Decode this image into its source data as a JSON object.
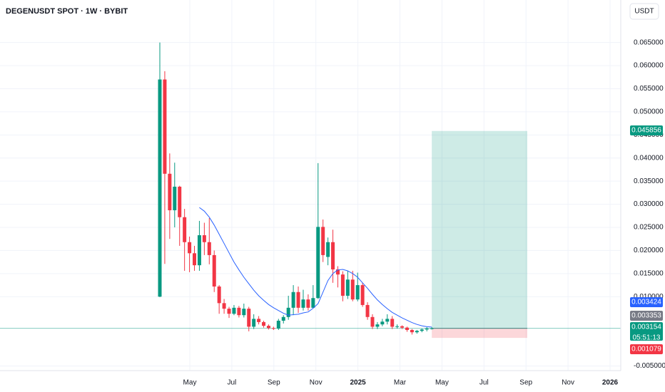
{
  "chart_data": {
    "type": "candlestick",
    "title": "DEGENUSDT SPOT · 1W · BYBIT",
    "currency": "USDT",
    "x_labels": [
      "May",
      "Jul",
      "Sep",
      "Nov",
      "2025",
      "Mar",
      "May",
      "Jul",
      "Sep",
      "Nov",
      "2026"
    ],
    "up_color": "#089981",
    "down_color": "#f23645",
    "open": [
      0.01,
      0.057,
      0.0366,
      0.0287,
      0.0338,
      0.0272,
      0.0218,
      0.0194,
      0.0168,
      0.0233,
      0.0218,
      0.019,
      0.0122,
      0.0086,
      0.0074,
      0.0063,
      0.0076,
      0.006,
      0.0074,
      0.0035,
      0.0052,
      0.0045,
      0.0037,
      0.0032,
      0.0031,
      0.0048,
      0.0056,
      0.0076,
      0.011,
      0.0076,
      0.0094,
      0.0076,
      0.0097,
      0.0251,
      0.0186,
      0.0218,
      0.0159,
      0.0148,
      0.0102,
      0.0137,
      0.0094,
      0.0125,
      0.0082,
      0.0056,
      0.0035,
      0.004,
      0.0046,
      0.0052,
      0.0035,
      0.0036,
      0.0033,
      0.0028,
      0.0023,
      0.0026,
      0.0029,
      0.0031
    ],
    "high": [
      0.065,
      0.0588,
      0.041,
      0.039,
      0.034,
      0.029,
      0.023,
      0.021,
      0.0264,
      0.026,
      0.027,
      0.02,
      0.0125,
      0.0095,
      0.0078,
      0.0082,
      0.008,
      0.0085,
      0.0078,
      0.0062,
      0.0058,
      0.0048,
      0.004,
      0.0035,
      0.0052,
      0.006,
      0.0102,
      0.0125,
      0.0122,
      0.0115,
      0.0105,
      0.0125,
      0.0389,
      0.0267,
      0.0228,
      0.0245,
      0.0166,
      0.0155,
      0.0156,
      0.0156,
      0.0152,
      0.013,
      0.0088,
      0.0062,
      0.0045,
      0.0052,
      0.0062,
      0.0058,
      0.004,
      0.0038,
      0.0035,
      0.003,
      0.0028,
      0.0031,
      0.0034,
      0.0034
    ],
    "low": [
      0.0099,
      0.0171,
      0.0225,
      0.025,
      0.021,
      0.0156,
      0.0153,
      0.0156,
      0.0156,
      0.019,
      0.017,
      0.011,
      0.0063,
      0.0063,
      0.0054,
      0.006,
      0.0055,
      0.0055,
      0.0025,
      0.003,
      0.004,
      0.0033,
      0.0029,
      0.0028,
      0.0028,
      0.0042,
      0.005,
      0.006,
      0.0065,
      0.007,
      0.007,
      0.0075,
      0.0095,
      0.0175,
      0.0168,
      0.013,
      0.012,
      0.009,
      0.0095,
      0.009,
      0.009,
      0.0078,
      0.005,
      0.003,
      0.003,
      0.0036,
      0.004,
      0.003,
      0.0031,
      0.003,
      0.0024,
      0.0018,
      0.002,
      0.0023,
      0.0025,
      0.0029
    ],
    "close": [
      0.057,
      0.0366,
      0.0287,
      0.0338,
      0.0272,
      0.0218,
      0.0194,
      0.0168,
      0.0233,
      0.0218,
      0.019,
      0.0122,
      0.0086,
      0.0074,
      0.0063,
      0.0076,
      0.006,
      0.0074,
      0.0035,
      0.0052,
      0.0045,
      0.0037,
      0.0032,
      0.0031,
      0.0048,
      0.0056,
      0.0076,
      0.011,
      0.0076,
      0.0094,
      0.0076,
      0.0097,
      0.0251,
      0.019,
      0.0218,
      0.0159,
      0.0148,
      0.0102,
      0.0137,
      0.0094,
      0.0125,
      0.0082,
      0.0056,
      0.0035,
      0.004,
      0.0046,
      0.0052,
      0.0035,
      0.0036,
      0.0033,
      0.0028,
      0.0023,
      0.0026,
      0.0029,
      0.0031,
      0.003154
    ],
    "ma": {
      "color": "#2962ff",
      "values": [
        null,
        null,
        null,
        null,
        null,
        null,
        null,
        null,
        0.0293,
        0.0285,
        0.0272,
        0.0255,
        0.0235,
        0.0215,
        0.0195,
        0.0175,
        0.0158,
        0.0142,
        0.0128,
        0.0114,
        0.0102,
        0.0092,
        0.0083,
        0.0076,
        0.007,
        0.0064,
        0.006,
        0.0061,
        0.0062,
        0.0065,
        0.0067,
        0.0075,
        0.0085,
        0.011,
        0.0135,
        0.015,
        0.0158,
        0.0159,
        0.0156,
        0.015,
        0.0142,
        0.013,
        0.0118,
        0.0105,
        0.0093,
        0.0083,
        0.0074,
        0.0066,
        0.006,
        0.0054,
        0.0049,
        0.0044,
        0.004,
        0.0037,
        0.0035,
        0.003424
      ]
    },
    "position": {
      "target": 0.045856,
      "entry": 0.003154,
      "stop": 0.001079
    },
    "ma_last": 0.003424,
    "prev_price": 0.003353,
    "last_price": 0.003154,
    "countdown": "05:51:13",
    "ylim": [
      -0.006,
      0.0742
    ],
    "yticks": [
      {
        "value": 0.065,
        "label": "0.065000"
      },
      {
        "value": 0.06,
        "label": "0.060000"
      },
      {
        "value": 0.055,
        "label": "0.055000"
      },
      {
        "value": 0.05,
        "label": "0.050000"
      },
      {
        "value": 0.045,
        "label": "0.045000"
      },
      {
        "value": 0.04,
        "label": "0.040000"
      },
      {
        "value": 0.035,
        "label": "0.035000"
      },
      {
        "value": 0.03,
        "label": "0.030000"
      },
      {
        "value": 0.025,
        "label": "0.025000"
      },
      {
        "value": 0.02,
        "label": "0.020000"
      },
      {
        "value": 0.015,
        "label": "0.015000"
      },
      {
        "value": 0.01,
        "label": "0.010000"
      },
      {
        "value": -0.005,
        "label": "-0.005000"
      }
    ],
    "grid": true
  }
}
